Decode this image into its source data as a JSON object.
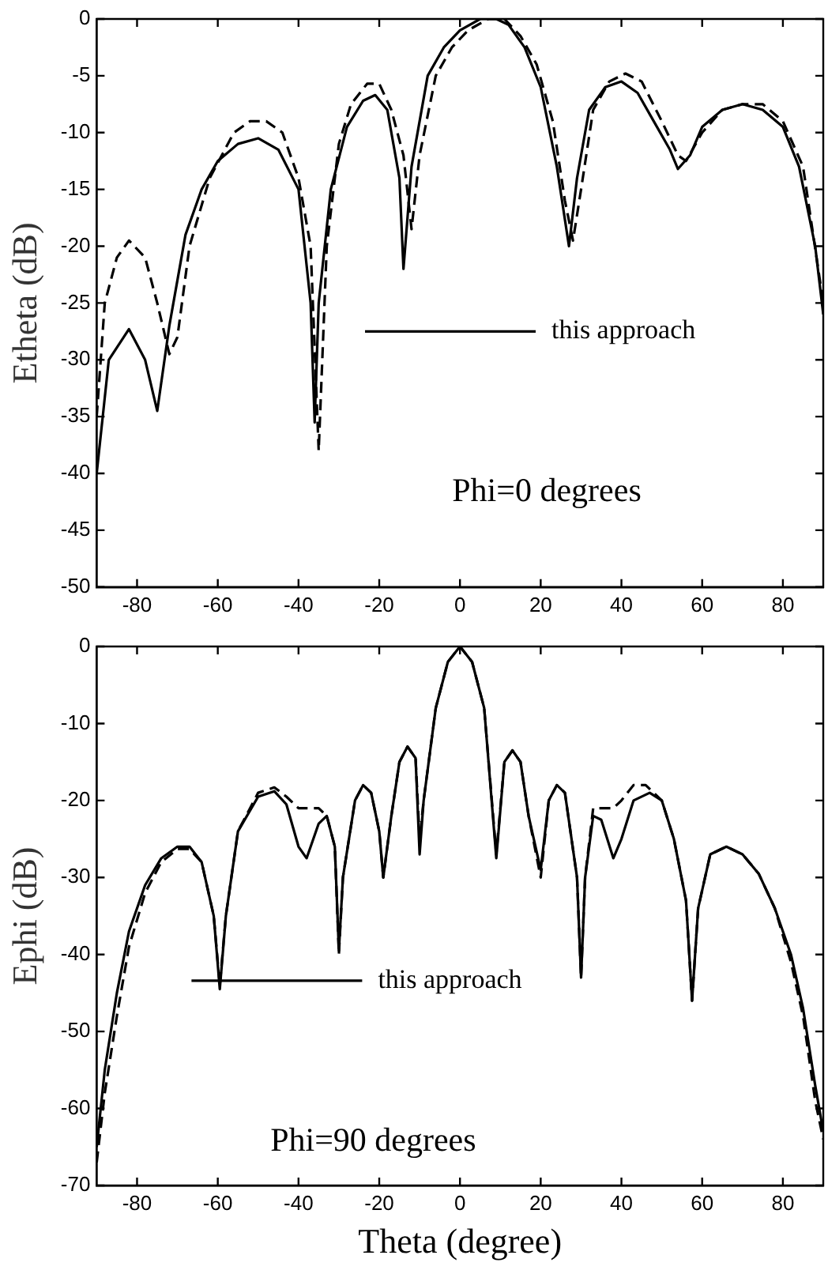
{
  "chart_data": [
    {
      "type": "line",
      "ylabel": "Etheta (dB)",
      "xlim": [
        -90,
        90
      ],
      "xticks": [
        -80,
        -60,
        -40,
        -20,
        0,
        20,
        40,
        60,
        80
      ],
      "ylim": [
        -50,
        0
      ],
      "yticks": [
        -50,
        -45,
        -40,
        -35,
        -30,
        -25,
        -20,
        -15,
        -10,
        -5,
        0
      ],
      "legend": "center right",
      "annotations": [
        "Phi=0 degrees"
      ],
      "series": [
        {
          "name": "this approach",
          "color": "#000000",
          "line_style": "solid",
          "x": [
            -90,
            -87,
            -82,
            -78,
            -75,
            -72,
            -68,
            -64,
            -60,
            -55,
            -50,
            -45,
            -40,
            -37,
            -36,
            -35,
            -32,
            -28,
            -24,
            -21,
            -18,
            -15,
            -14,
            -12,
            -8,
            -4,
            0,
            5,
            9,
            12,
            16,
            20,
            24,
            27,
            29,
            32,
            36,
            40,
            44,
            48,
            52,
            54,
            57,
            60,
            65,
            70,
            75,
            80,
            84,
            88,
            90
          ],
          "values": [
            -40,
            -30,
            -27.3,
            -30,
            -34.5,
            -27,
            -19,
            -15,
            -12.5,
            -11,
            -10.5,
            -11.5,
            -15,
            -25,
            -35.5,
            -25,
            -15,
            -9.5,
            -7.2,
            -6.7,
            -8,
            -14,
            -22,
            -13,
            -5,
            -2.5,
            -1,
            0,
            0,
            -0.5,
            -2.5,
            -6,
            -13,
            -20,
            -14,
            -8,
            -6,
            -5.5,
            -6.5,
            -9,
            -11.5,
            -13.2,
            -12,
            -9.5,
            -8,
            -7.5,
            -8,
            -9.5,
            -13,
            -20,
            -26
          ]
        },
        {
          "color": "#000000",
          "line_style": "dashed",
          "x": [
            -90,
            -88,
            -85,
            -82,
            -78,
            -75,
            -72,
            -70,
            -67,
            -62,
            -56,
            -52,
            -48,
            -44,
            -40,
            -37,
            -35,
            -33,
            -30,
            -27,
            -23,
            -20,
            -17,
            -14,
            -12,
            -10,
            -6,
            -2,
            2,
            7,
            11,
            15,
            19,
            23,
            26,
            28,
            30,
            33,
            37,
            41,
            45,
            50,
            54,
            56,
            60,
            65,
            70,
            75,
            80,
            85,
            90
          ],
          "values": [
            -35,
            -25,
            -21,
            -19.5,
            -21,
            -25,
            -29.5,
            -28,
            -20,
            -14,
            -10,
            -9,
            -9,
            -10,
            -14,
            -20,
            -38,
            -20,
            -11,
            -7.5,
            -5.7,
            -5.7,
            -8,
            -12,
            -18.5,
            -12,
            -5,
            -2.5,
            -1,
            0,
            0,
            -1.5,
            -4,
            -9,
            -16,
            -19.5,
            -15,
            -8,
            -5.5,
            -4.8,
            -5.5,
            -9,
            -12,
            -12.5,
            -10,
            -8,
            -7.5,
            -7.5,
            -9,
            -13,
            -25
          ]
        }
      ]
    },
    {
      "type": "line",
      "xlabel": "Theta (degree)",
      "ylabel": "Ephi (dB)",
      "xlim": [
        -90,
        90
      ],
      "xticks": [
        -80,
        -60,
        -40,
        -20,
        0,
        20,
        40,
        60,
        80
      ],
      "ylim": [
        -70,
        0
      ],
      "yticks": [
        -70,
        -60,
        -50,
        -40,
        -30,
        -20,
        -10,
        0
      ],
      "legend": "bottom left",
      "annotations": [
        "Phi=90 degrees"
      ],
      "series": [
        {
          "name": "this approach",
          "color": "#000000",
          "line_style": "solid",
          "x": [
            -90,
            -88,
            -85,
            -82,
            -78,
            -74,
            -70,
            -67,
            -64,
            -61,
            -59.5,
            -58,
            -55,
            -50,
            -46,
            -43,
            -40,
            -38,
            -35,
            -33,
            -31,
            -30,
            -29,
            -26,
            -24,
            -22,
            -20,
            -19,
            -17,
            -15,
            -13,
            -11,
            -10,
            -9,
            -6,
            -3,
            0,
            3,
            6,
            9,
            11,
            13,
            15,
            17,
            20,
            22,
            24,
            26,
            29,
            30,
            31,
            33,
            35,
            38,
            40,
            43,
            47,
            50,
            53,
            56,
            57.5,
            59,
            62,
            66,
            70,
            74,
            78,
            82,
            85,
            88,
            90
          ],
          "values": [
            -65,
            -55,
            -45,
            -37,
            -31,
            -27.5,
            -26,
            -26,
            -28,
            -35,
            -44.5,
            -35,
            -24,
            -19.5,
            -18.8,
            -20.5,
            -26,
            -27.5,
            -23,
            -22,
            -26,
            -39.5,
            -30,
            -20,
            -18,
            -19,
            -24,
            -30,
            -22,
            -15,
            -13,
            -14.5,
            -27,
            -20,
            -8,
            -2,
            0,
            -2,
            -8,
            -27.5,
            -15,
            -13.5,
            -15,
            -22,
            -29,
            -20,
            -18,
            -19,
            -30,
            -43,
            -30,
            -22,
            -22.5,
            -27.5,
            -25,
            -20,
            -19,
            -20,
            -25,
            -33,
            -46,
            -34,
            -27,
            -26,
            -27,
            -29.5,
            -34,
            -40,
            -47,
            -57,
            -63
          ]
        },
        {
          "color": "#000000",
          "line_style": "dashed",
          "x": [
            -90,
            -88,
            -85,
            -82,
            -78,
            -74,
            -70,
            -67,
            -64,
            -61,
            -59.5,
            -58,
            -55,
            -50,
            -46,
            -43,
            -40,
            -38,
            -35,
            -33,
            -31,
            -30,
            -29,
            -26,
            -24,
            -22,
            -20,
            -19,
            -17,
            -15,
            -13,
            -11,
            -10,
            -9,
            -6,
            -3,
            0,
            3,
            6,
            9,
            11,
            13,
            15,
            17,
            20,
            22,
            24,
            26,
            29,
            30,
            31,
            33,
            35,
            38,
            40,
            43,
            46,
            50,
            53,
            56,
            57.5,
            59,
            62,
            66,
            70,
            74,
            78,
            82,
            85,
            88,
            90
          ],
          "values": [
            -67,
            -58,
            -48,
            -39,
            -32,
            -28,
            -26.3,
            -26.3,
            -28,
            -35,
            -44,
            -35,
            -24,
            -19,
            -18.3,
            -19.5,
            -21,
            -21,
            -21,
            -22,
            -26,
            -40,
            -30,
            -20,
            -18,
            -19,
            -24,
            -30,
            -22,
            -15,
            -13,
            -14.5,
            -25,
            -20,
            -8,
            -2,
            0,
            -2,
            -8,
            -27,
            -15,
            -13.5,
            -15,
            -22,
            -30,
            -20,
            -18,
            -19,
            -30,
            -43,
            -30,
            -21,
            -21,
            -21,
            -20,
            -18,
            -18,
            -20,
            -25,
            -33,
            -46,
            -34,
            -27,
            -26,
            -27,
            -29.5,
            -34,
            -41,
            -48,
            -59,
            -64
          ]
        }
      ]
    }
  ]
}
